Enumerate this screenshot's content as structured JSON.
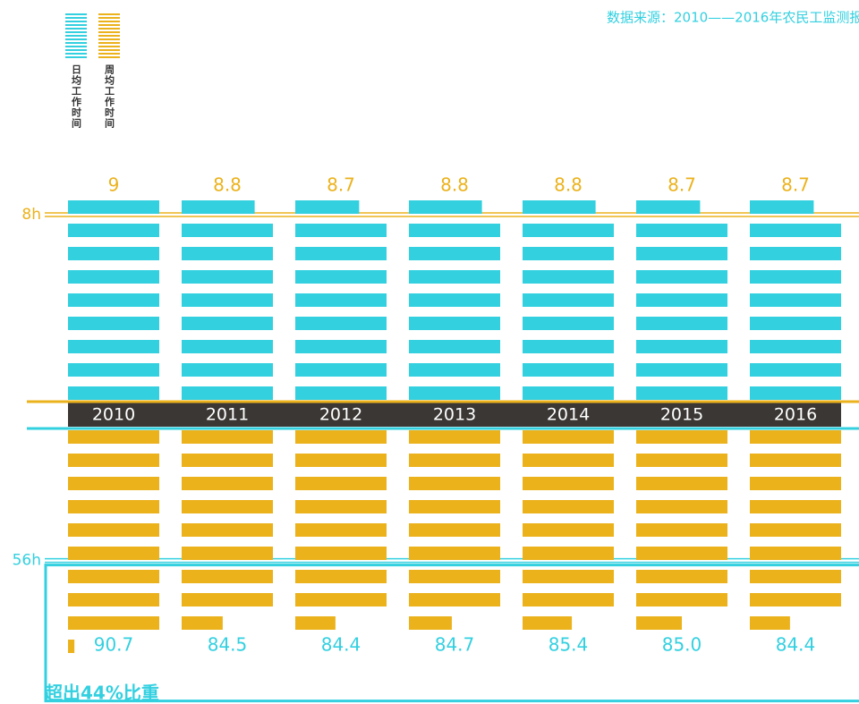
{
  "chart_data": {
    "type": "bar",
    "source": "数据来源：2010——2016年农民工监测报",
    "categories": [
      "2010",
      "2011",
      "2012",
      "2013",
      "2014",
      "2015",
      "2016"
    ],
    "series": [
      {
        "name": "日均工作时间",
        "color": "#33d0e0",
        "axis": "y",
        "values": [
          9,
          8.8,
          8.7,
          8.8,
          8.8,
          8.7,
          8.7
        ]
      },
      {
        "name": "周均工作时间",
        "color": "#ebb21c",
        "axis": "y2",
        "values": [
          90.7,
          84.5,
          84.4,
          84.7,
          85.4,
          85.0,
          84.4
        ],
        "value_labels": [
          "90.7",
          "84.5",
          "84.4",
          "84.7",
          "85.4",
          "85.0",
          "84.4"
        ]
      }
    ],
    "ylim": [
      0,
      9
    ],
    "y2lim": [
      0,
      90
    ],
    "reference_lines": [
      {
        "value": 8,
        "label": "8h",
        "axis": "y"
      },
      {
        "value": 56,
        "label": "56h",
        "axis": "y2"
      }
    ],
    "annotation": "超出44%比重"
  }
}
